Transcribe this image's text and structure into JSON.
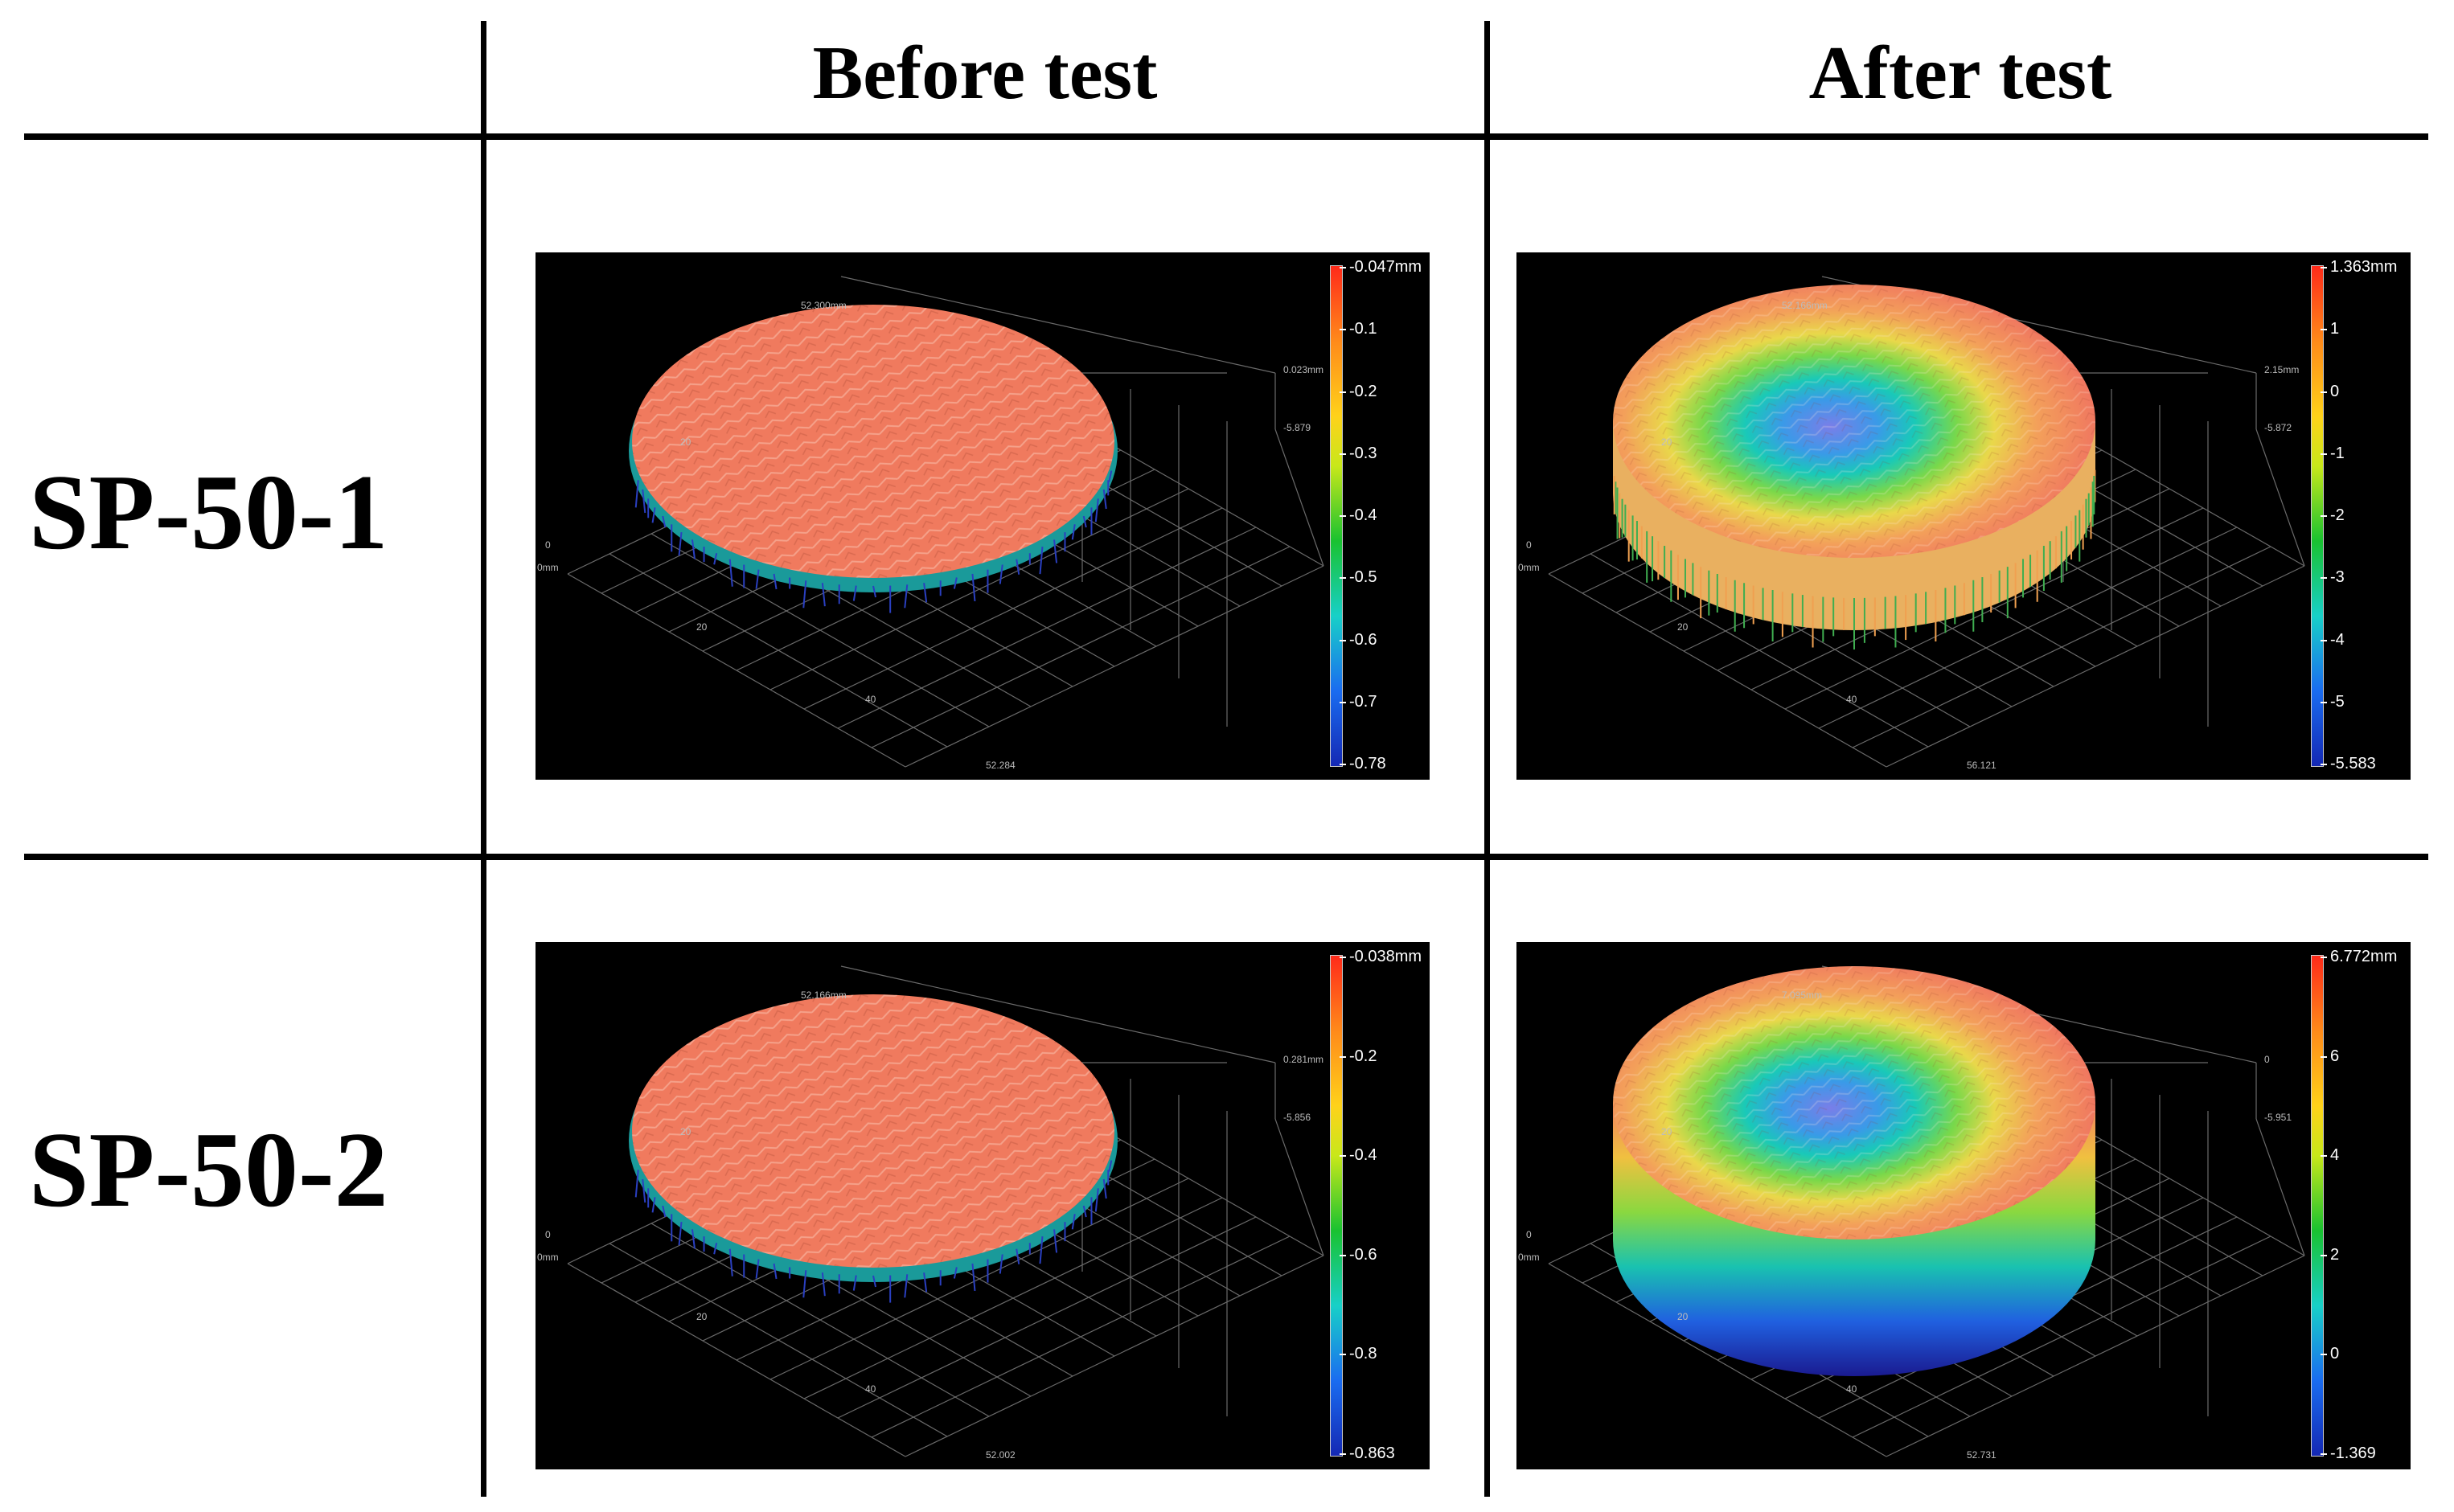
{
  "columns": {
    "before": "Before test",
    "after": "After test"
  },
  "rows": [
    {
      "label": "SP-50-1",
      "before": {
        "colorbar_ticks": [
          "-0.047mm",
          "-0.1",
          "-0.2",
          "-0.3",
          "-0.4",
          "-0.5",
          "-0.6",
          "-0.7",
          "-0.78"
        ],
        "axis_labels": [
          "52.300mm",
          "0.023mm",
          "-5.879",
          "20",
          "0",
          "0mm",
          "20",
          "40",
          "52.284"
        ]
      },
      "after": {
        "colorbar_ticks": [
          "1.363mm",
          "1",
          "0",
          "-1",
          "-2",
          "-3",
          "-4",
          "-5",
          "-5.583"
        ],
        "axis_labels": [
          "52.166mm",
          "2.15mm",
          "-5.872",
          "20",
          "0",
          "0mm",
          "20",
          "40",
          "56.121"
        ]
      }
    },
    {
      "label": "SP-50-2",
      "before": {
        "colorbar_ticks": [
          "-0.038mm",
          "-0.2",
          "-0.4",
          "-0.6",
          "-0.8",
          "-0.863"
        ],
        "axis_labels": [
          "52.166mm",
          "0.281mm",
          "-5.856",
          "20",
          "0",
          "0mm",
          "20",
          "40",
          "52.002"
        ]
      },
      "after": {
        "colorbar_ticks": [
          "6.772mm",
          "6",
          "4",
          "2",
          "0",
          "-1.369"
        ],
        "axis_labels": [
          "7.095mm",
          "0",
          "-5.951",
          "20",
          "0",
          "0mm",
          "20",
          "40",
          "52.731"
        ]
      }
    }
  ]
}
